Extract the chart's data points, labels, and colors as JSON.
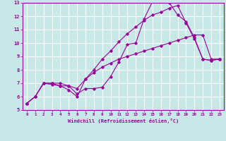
{
  "xlabel": "Windchill (Refroidissement éolien,°C)",
  "xlim": [
    -0.5,
    23.5
  ],
  "ylim": [
    5,
    13
  ],
  "xticks": [
    0,
    1,
    2,
    3,
    4,
    5,
    6,
    7,
    8,
    9,
    10,
    11,
    12,
    13,
    14,
    15,
    16,
    17,
    18,
    19,
    20,
    21,
    22,
    23
  ],
  "yticks": [
    5,
    6,
    7,
    8,
    9,
    10,
    11,
    12,
    13
  ],
  "bg_color": "#c8e8e8",
  "line_color": "#990099",
  "curve1_x": [
    0,
    1,
    2,
    3,
    4,
    5,
    6,
    7,
    8,
    9,
    10,
    11,
    12,
    13,
    14,
    15,
    16,
    17,
    18,
    19,
    20,
    21,
    22,
    23
  ],
  "curve1_y": [
    5.5,
    6.0,
    7.0,
    7.0,
    7.0,
    6.8,
    6.2,
    6.6,
    6.6,
    6.7,
    7.5,
    8.6,
    9.9,
    10.0,
    11.8,
    13.1,
    13.1,
    13.0,
    12.1,
    11.6,
    10.4,
    8.8,
    8.7,
    8.8
  ],
  "curve2_x": [
    0,
    1,
    2,
    3,
    4,
    5,
    6,
    7,
    8,
    9,
    10,
    11,
    12,
    13,
    14,
    15,
    16,
    17,
    18,
    19,
    20,
    21,
    22,
    23
  ],
  "curve2_y": [
    5.5,
    6.0,
    7.0,
    7.0,
    6.8,
    6.5,
    6.0,
    7.3,
    8.0,
    8.8,
    9.4,
    10.1,
    10.7,
    11.2,
    11.7,
    12.1,
    12.3,
    12.6,
    12.8,
    11.5,
    10.3,
    8.8,
    8.7,
    8.8
  ],
  "curve3_x": [
    0,
    1,
    2,
    3,
    4,
    5,
    6,
    7,
    8,
    9,
    10,
    11,
    12,
    13,
    14,
    15,
    16,
    17,
    18,
    19,
    20,
    21,
    22,
    23
  ],
  "curve3_y": [
    5.5,
    6.0,
    7.0,
    6.9,
    6.8,
    6.8,
    6.6,
    7.3,
    7.8,
    8.2,
    8.5,
    8.8,
    9.0,
    9.2,
    9.4,
    9.6,
    9.8,
    10.0,
    10.2,
    10.4,
    10.6,
    10.6,
    8.8,
    8.8
  ]
}
